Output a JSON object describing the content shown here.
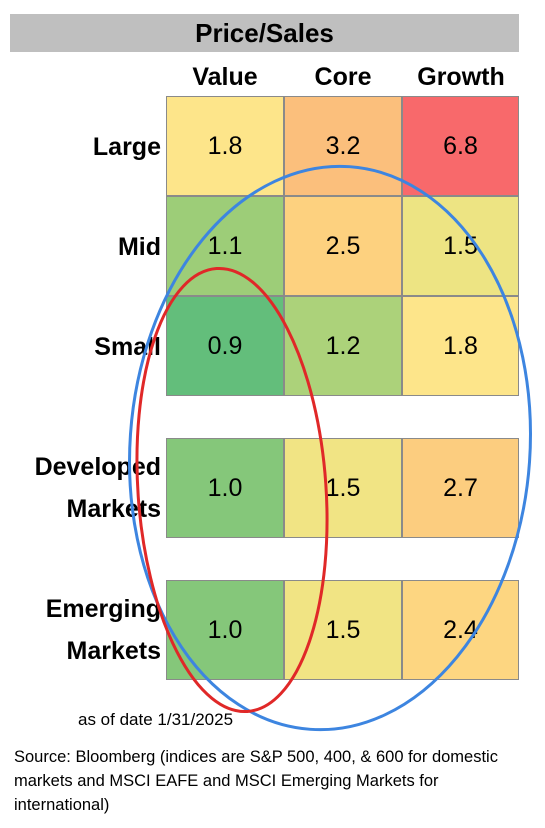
{
  "chart_data": {
    "type": "heatmap",
    "title": "Price/Sales",
    "columns": [
      "Value",
      "Core",
      "Growth"
    ],
    "rows": [
      {
        "label": "Large",
        "values": [
          "1.8",
          "3.2",
          "6.8"
        ],
        "colors": [
          "#fde58a",
          "#fbbf7c",
          "#f8696b"
        ]
      },
      {
        "label": "Mid",
        "values": [
          "1.1",
          "2.5",
          "1.5"
        ],
        "colors": [
          "#9dcd78",
          "#fdd17f",
          "#ede483"
        ]
      },
      {
        "label": "Small",
        "values": [
          "0.9",
          "1.2",
          "1.8"
        ],
        "colors": [
          "#63be7b",
          "#acd27a",
          "#fde58a"
        ]
      },
      {
        "label": "Developed Markets",
        "label_lines": [
          "Developed",
          "Markets"
        ],
        "values": [
          "1.0",
          "1.5",
          "2.7"
        ],
        "colors": [
          "#85c77a",
          "#f1e484",
          "#fccd7f"
        ]
      },
      {
        "label": "Emerging Markets",
        "label_lines": [
          "Emerging",
          "Markets"
        ],
        "values": [
          "1.0",
          "1.5",
          "2.4"
        ],
        "colors": [
          "#85c77a",
          "#f1e484",
          "#fdd681"
        ]
      }
    ]
  },
  "notes": {
    "as_of": "as of date  1/31/2025",
    "source": "Source: Bloomberg (indices are S&P 500, 400, & 600 for domestic markets and MSCI EAFE and MSCI Emerging Markets for international)"
  },
  "overlay_colors": {
    "blue_ellipse": "#3d85e0",
    "red_ellipse": "#e02828"
  }
}
